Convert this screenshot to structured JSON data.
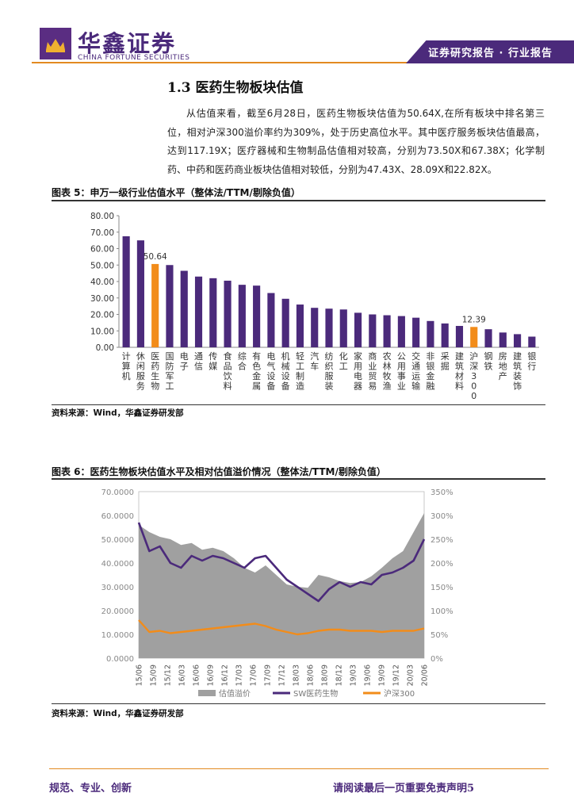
{
  "header": {
    "brand_cn": "华鑫证券",
    "brand_en": "CHINA FORTUNE SECURITIES",
    "report_type": "证券研究报告 · 行业报告",
    "accent_color": "#4b2a7b",
    "line_color": "#e28a21"
  },
  "section": {
    "title": "1.3 医药生物板块估值",
    "paragraph": "从估值来看，截至6月28日，医药生物板块估值为50.64X,在所有板块中排名第三位，相对沪深300溢价率约为309%，处于历史高位水平。其中医疗服务板块估值最高，达到117.19X；医疗器械和生物制品估值相对较高，分别为73.50X和67.38X；化学制药、中药和医药商业板块估值相对较低，分别为47.43X、28.09X和22.82X。"
  },
  "figure5": {
    "title": "图表 5：申万一级行业估值水平（整体法/TTM/剔除负值）",
    "source": "资料来源：Wind，华鑫证券研发部"
  },
  "figure6": {
    "title": "图表 6：医药生物板块估值水平及相对估值溢价情况（整体法/TTM/剔除负值）",
    "source": "资料来源：Wind，华鑫证券研发部"
  },
  "chart_data": [
    {
      "type": "bar",
      "categories": [
        "计算机",
        "休闲服务",
        "医药生物",
        "国防军工",
        "电子",
        "通信",
        "传媒",
        "食品饮料",
        "综合",
        "有色金属",
        "电气设备",
        "机械设备",
        "轻工制造",
        "汽车",
        "纺织服装",
        "化工",
        "家用电器",
        "商业贸易",
        "农林牧渔",
        "公用事业",
        "交通运输",
        "非银金融",
        "采掘",
        "建筑材料",
        "沪深300",
        "钢铁",
        "房地产",
        "建筑装饰",
        "银行"
      ],
      "values": [
        67.5,
        65.0,
        50.64,
        50.0,
        46.5,
        43.0,
        42.0,
        40.5,
        38.0,
        37.5,
        33.0,
        29.5,
        26.0,
        24.0,
        23.5,
        23.0,
        21.0,
        20.0,
        19.5,
        19.0,
        18.0,
        16.0,
        14.5,
        13.0,
        12.39,
        11.0,
        9.0,
        8.0,
        6.5
      ],
      "highlight": [
        "医药生物",
        "沪深300"
      ],
      "data_labels": [
        {
          "category": "医药生物",
          "text": "50.64"
        },
        {
          "category": "沪深300",
          "text": "12.39"
        }
      ],
      "ylim": [
        0,
        80
      ],
      "yticks": [
        "0.00",
        "10.00",
        "20.00",
        "30.00",
        "40.00",
        "50.00",
        "60.00",
        "70.00",
        "80.00"
      ],
      "bar_color": "#4b2a7b",
      "highlight_color": "#f28c1a",
      "grid": false
    },
    {
      "type": "line",
      "x_ticks": [
        "15/06",
        "15/09",
        "15/12",
        "16/03",
        "16/06",
        "16/09",
        "16/12",
        "17/03",
        "17/06",
        "17/09",
        "17/12",
        "18/03",
        "18/06",
        "18/09",
        "18/12",
        "19/03",
        "19/06",
        "19/09",
        "19/12",
        "20/03",
        "20/06"
      ],
      "y_left_ticks": [
        "0.0000",
        "10.0000",
        "20.0000",
        "30.0000",
        "40.0000",
        "50.0000",
        "60.0000",
        "70.0000"
      ],
      "y_right_ticks": [
        "0%",
        "50%",
        "100%",
        "150%",
        "200%",
        "250%",
        "300%",
        "350%"
      ],
      "ylim_left": [
        0,
        70
      ],
      "ylim_right": [
        0,
        350
      ],
      "series": [
        {
          "name": "估值溢价",
          "kind": "area",
          "axis": "right",
          "color": "#a0a0a0",
          "values": [
            280,
            265,
            255,
            250,
            238,
            242,
            228,
            232,
            225,
            210,
            190,
            180,
            195,
            175,
            155,
            150,
            148,
            175,
            170,
            162,
            158,
            160,
            172,
            190,
            210,
            225,
            265,
            305
          ]
        },
        {
          "name": "SW医药生物",
          "kind": "line",
          "axis": "left",
          "color": "#4b2a7b",
          "values": [
            57,
            45,
            47,
            40,
            38,
            43,
            41,
            43,
            42,
            40,
            38,
            42,
            43,
            38,
            33,
            30,
            27,
            24,
            29,
            32,
            30,
            32,
            31,
            35,
            36,
            38,
            41,
            50
          ]
        },
        {
          "name": "沪深300",
          "kind": "line",
          "axis": "left",
          "color": "#f28c1a",
          "values": [
            16,
            11,
            11.5,
            10.5,
            11,
            11.5,
            12,
            12.5,
            13,
            13.5,
            14,
            14.5,
            13.5,
            12,
            11,
            10,
            10.5,
            11.5,
            12,
            12,
            11.5,
            11.5,
            11.5,
            11,
            11.5,
            11.5,
            11.5,
            12.5
          ]
        }
      ],
      "legend": "bottom"
    }
  ],
  "footer": {
    "left": "规范、专业、创新",
    "right": "请阅读最后一页重要免责声明5"
  }
}
